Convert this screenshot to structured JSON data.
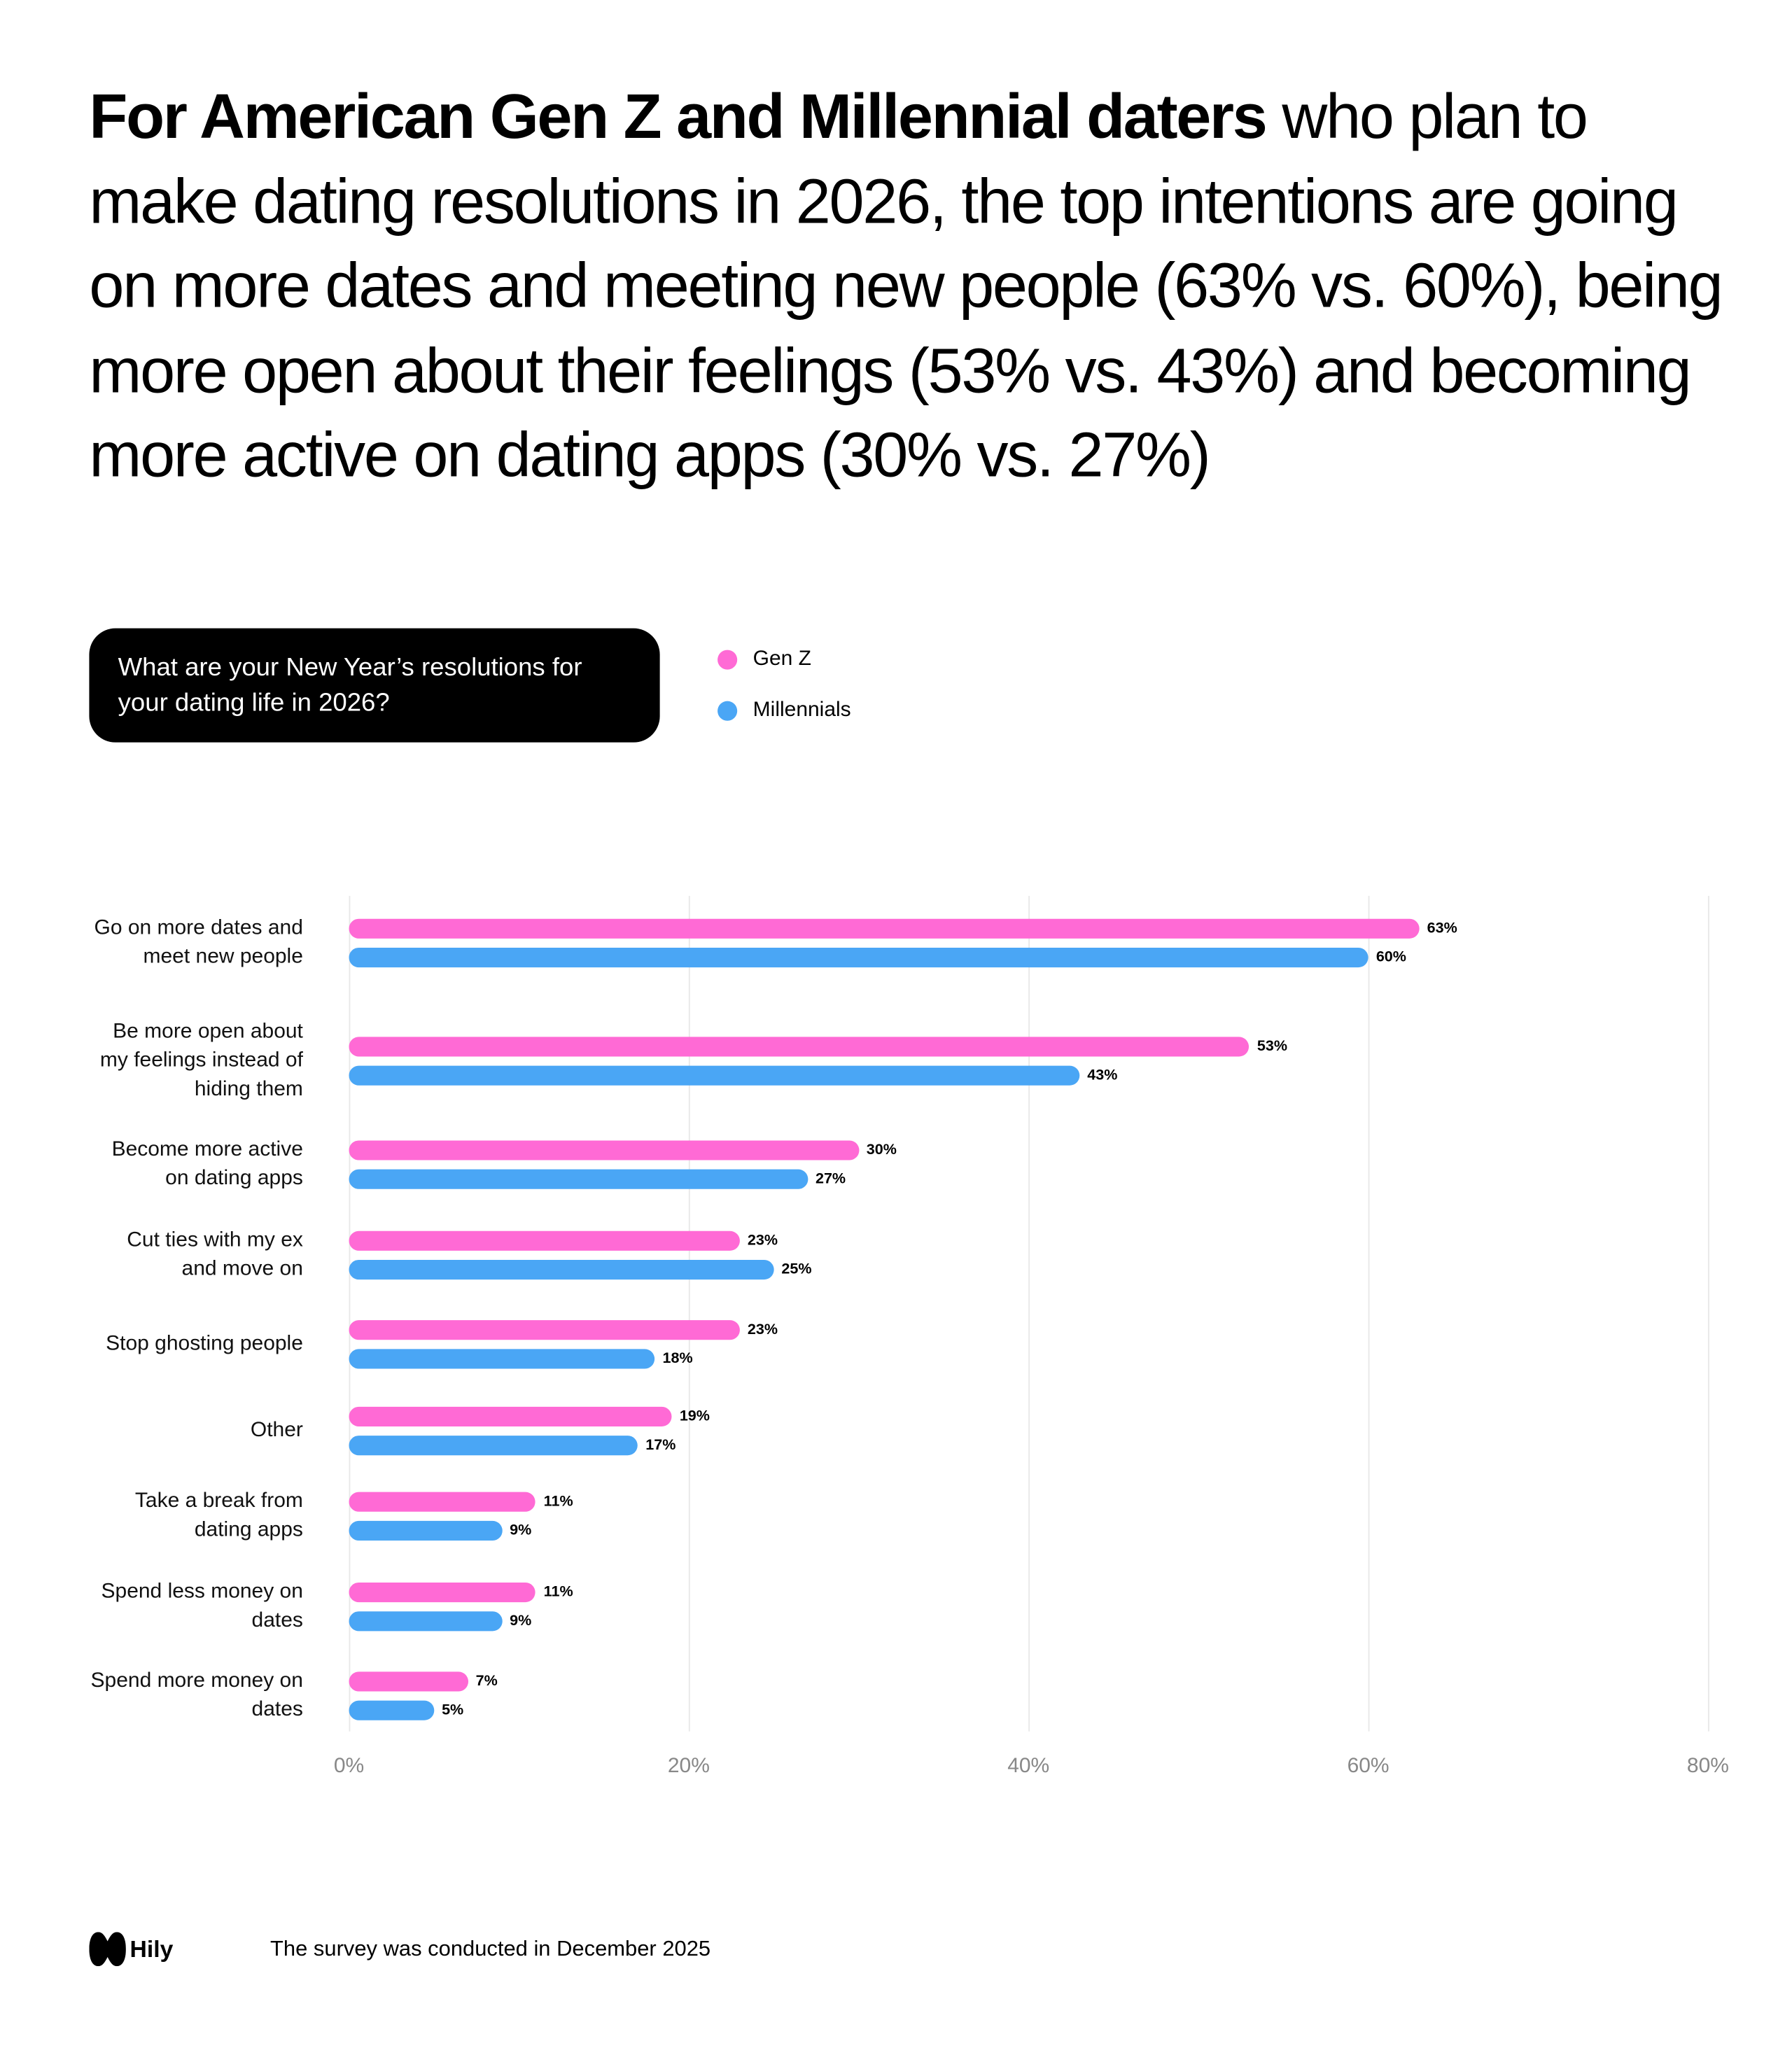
{
  "title_bold": "For American Gen Z and Millennial daters",
  "title_rest": "who plan to make dating resolutions in 2026, the top intentions are going on more dates and meeting new people (63% vs. 60%), being more open about their feelings (53% vs. 43%) and becoming more active on dating apps (30% vs. 27%)",
  "chart_data": {
    "type": "bar",
    "orientation": "horizontal",
    "question": "What are your New Year’s resolutions for your dating life in 2026?",
    "categories": [
      "Go on more dates and meet new people",
      "Be more open about my feelings instead of hiding them",
      "Become more active on dating apps",
      "Cut ties with my ex and move on",
      "Stop ghosting people",
      "Other",
      "Take a break from dating apps",
      "Spend less money on dates",
      "Spend more money on dates"
    ],
    "series": [
      {
        "name": "Gen Z",
        "color": "#ff6ad5",
        "values": [
          63,
          53,
          30,
          23,
          23,
          19,
          11,
          11,
          7
        ],
        "value_labels": [
          "63%",
          "53%",
          "30%",
          "23%",
          "23%",
          "19%",
          "11%",
          "11%",
          "7%"
        ]
      },
      {
        "name": "Millennials",
        "color": "#4aa6f5",
        "values": [
          60,
          43,
          27,
          25,
          18,
          17,
          9,
          9,
          5
        ],
        "value_labels": [
          "60%",
          "43%",
          "27%",
          "25%",
          "18%",
          "17%",
          "9%",
          "9%",
          "5%"
        ]
      }
    ],
    "xlim": [
      0,
      80
    ],
    "xticks": [
      {
        "value": 0,
        "label": "0%"
      },
      {
        "value": 20,
        "label": "20%"
      },
      {
        "value": 40,
        "label": "40%"
      },
      {
        "value": 60,
        "label": "60%"
      },
      {
        "value": 80,
        "label": "80%"
      }
    ],
    "grid": true,
    "legend": "top"
  },
  "footer": {
    "brand": "Hily",
    "note": "The survey was conducted in December 2025"
  }
}
